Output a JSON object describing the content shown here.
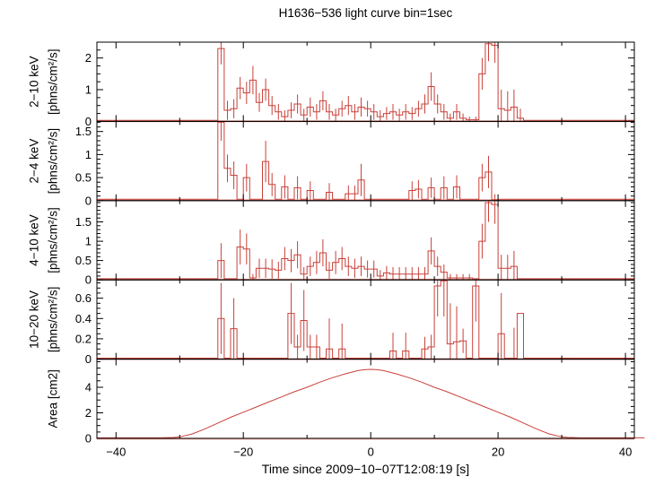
{
  "chart_data": {
    "type": "line",
    "title": "H1636−536 light curve bin=1sec",
    "x_axis": {
      "label": "Time since 2009−10−07T12:08:19 [s]",
      "range": [
        -43,
        41.4
      ],
      "major_ticks": [
        -40,
        -20,
        0,
        20,
        40
      ],
      "major_tick_labels": [
        "−40",
        "−20",
        "0",
        "20",
        "40"
      ],
      "minor_ticks": [
        -30,
        -10,
        10,
        30
      ]
    },
    "colors": {
      "line": "#c9413a",
      "error_bar": "#c9413a",
      "baseline_band": "#eba69f",
      "frame": "#000000",
      "background": "#ffffff",
      "text": "#000000"
    },
    "bin_width_sec": 1,
    "panels": [
      {
        "id": "2-10keV",
        "energy_label": "2−10 keV",
        "unit_label": "[phns/cm²/s]",
        "ylim": [
          0,
          2.5
        ],
        "yticks": [
          0,
          1,
          2
        ],
        "ytick_labels": [
          "0",
          "1",
          "2"
        ],
        "minor_step": 0.25,
        "baseline": 0.03,
        "bin_start": -25,
        "values": [
          0.03,
          2.3,
          0.35,
          0.4,
          1.05,
          0.9,
          1.3,
          0.6,
          1.0,
          0.5,
          0.3,
          0.15,
          0.35,
          0.55,
          0.2,
          0.45,
          0.3,
          0.65,
          0.3,
          0.2,
          0.4,
          0.5,
          0.3,
          0.45,
          0.4,
          0.3,
          0.15,
          0.25,
          0.3,
          0.2,
          0.3,
          0.25,
          0.4,
          0.55,
          1.1,
          0.55,
          0.3,
          0.1,
          0.3,
          0.1,
          0.05,
          0.05,
          1.5,
          2.45,
          2.4,
          0.4,
          0.35,
          0.45,
          0.1,
          0.03
        ],
        "errors": [
          0,
          0.5,
          0.3,
          0.3,
          0.35,
          0.35,
          0.45,
          0.3,
          0.35,
          0.3,
          0.25,
          0.2,
          0.25,
          0.3,
          0.2,
          0.3,
          0.25,
          0.3,
          0.25,
          0.2,
          0.25,
          0.3,
          0.25,
          0.3,
          0.25,
          0.25,
          0.2,
          0.2,
          0.25,
          0.2,
          0.25,
          0.2,
          0.25,
          0.3,
          0.45,
          0.3,
          0.25,
          0.15,
          0.25,
          0.15,
          0.1,
          0.1,
          0.5,
          0.55,
          0.55,
          0.6,
          0.6,
          0.55,
          0.3,
          0
        ]
      },
      {
        "id": "2-4keV",
        "energy_label": "2−4 keV",
        "unit_label": "[phns/cm²/s]",
        "ylim": [
          0,
          1.72
        ],
        "yticks": [
          0,
          0.5,
          1,
          1.5
        ],
        "ytick_labels": [
          "0",
          "0.5",
          "1",
          "1.5"
        ],
        "minor_step": 0.1,
        "baseline": 0.03,
        "bin_start": -25,
        "values": [
          0.03,
          1.7,
          0.7,
          0.55,
          0.03,
          0.5,
          0.03,
          0.03,
          0.85,
          0.35,
          0.03,
          0.3,
          0.03,
          0.28,
          0.03,
          0.22,
          0.03,
          0.03,
          0.18,
          0.03,
          0.03,
          0.15,
          0.15,
          0.45,
          0.03,
          0.03,
          0.03,
          0.03,
          0.03,
          0.03,
          0.03,
          0.22,
          0.25,
          0.03,
          0.28,
          0.03,
          0.28,
          0.03,
          0.3,
          0.03,
          0.03,
          0.03,
          0.5,
          0.62,
          0.02,
          0.03,
          0.03,
          0.03,
          0.03,
          0.03
        ],
        "errors": [
          0,
          0.4,
          0.3,
          0.3,
          0,
          0.3,
          0,
          0,
          0.45,
          0.25,
          0,
          0.25,
          0,
          0.25,
          0,
          0.2,
          0,
          0,
          0.2,
          0,
          0,
          0.18,
          0.18,
          0.35,
          0,
          0,
          0,
          0,
          0,
          0,
          0,
          0.2,
          0.2,
          0,
          0.22,
          0,
          0.25,
          0,
          0.25,
          0,
          0,
          0,
          0.3,
          0.35,
          0.12,
          0,
          0,
          0,
          0,
          0
        ]
      },
      {
        "id": "4-10keV",
        "energy_label": "4−10 keV",
        "unit_label": "[phns/cm²/s]",
        "ylim": [
          0,
          2.05
        ],
        "yticks": [
          0,
          0.5,
          1,
          1.5
        ],
        "ytick_labels": [
          "0",
          "0.5",
          "1",
          "1.5"
        ],
        "minor_step": 0.1,
        "baseline": 0.03,
        "bin_start": -25,
        "values": [
          0.03,
          0.5,
          0.03,
          0.03,
          0.85,
          0.8,
          0.05,
          0.3,
          0.3,
          0.28,
          0.25,
          0.55,
          0.5,
          0.65,
          0.15,
          0.35,
          0.45,
          0.7,
          0.25,
          0.45,
          0.55,
          0.35,
          0.3,
          0.35,
          0.28,
          0.28,
          0.1,
          0.18,
          0.15,
          0.15,
          0.15,
          0.15,
          0.15,
          0.15,
          0.75,
          0.35,
          0.2,
          0.05,
          0.05,
          0.05,
          0.05,
          0.03,
          1.0,
          2.0,
          1.95,
          0.3,
          0.3,
          0.35,
          0.03,
          0.03
        ],
        "errors": [
          0,
          0.45,
          0,
          0,
          0.45,
          0.4,
          0.1,
          0.25,
          0.25,
          0.25,
          0.22,
          0.3,
          0.3,
          0.35,
          0.18,
          0.25,
          0.3,
          0.35,
          0.22,
          0.3,
          0.3,
          0.25,
          0.25,
          0.25,
          0.22,
          0.22,
          0.15,
          0.18,
          0.18,
          0.18,
          0.18,
          0.18,
          0.18,
          0.18,
          0.35,
          0.25,
          0.2,
          0.1,
          0.1,
          0.1,
          0.1,
          0,
          0.45,
          0.5,
          0.5,
          0.35,
          0.35,
          0.4,
          0,
          0
        ]
      },
      {
        "id": "10-20keV",
        "energy_label": "10−20 keV",
        "unit_label": "[phns/cm²/s]",
        "ylim": [
          0,
          0.78
        ],
        "yticks": [
          0,
          0.2,
          0.4,
          0.6
        ],
        "ytick_labels": [
          "0",
          "0.2",
          "0.4",
          "0.6"
        ],
        "minor_step": 0.05,
        "baseline": 0.01,
        "bin_start": -25,
        "values": [
          0.01,
          0.4,
          0.01,
          0.3,
          0.01,
          0.01,
          0.01,
          0.01,
          0.01,
          0.01,
          0.01,
          0.01,
          0.45,
          0.12,
          0.38,
          0.12,
          0.12,
          0.01,
          0.1,
          0.01,
          0.1,
          0.01,
          0.01,
          0.01,
          0.01,
          0.01,
          0.01,
          0.01,
          0.08,
          0.01,
          0.08,
          0.01,
          0.01,
          0.1,
          0.12,
          0.72,
          0.77,
          0.15,
          0.17,
          0.18,
          0.01,
          0.72,
          0.01,
          0.01,
          0.01,
          0.25,
          0.01,
          0.01,
          0.45,
          0.01
        ],
        "errors": [
          0,
          0.35,
          0,
          0.3,
          0,
          0,
          0,
          0,
          0,
          0,
          0,
          0,
          0.3,
          0.12,
          0.3,
          0.12,
          0.12,
          0,
          0.3,
          0,
          0.25,
          0,
          0,
          0,
          0,
          0,
          0,
          0,
          0.18,
          0,
          0.18,
          0,
          0,
          0.12,
          0.12,
          0.3,
          0.35,
          0.4,
          0.35,
          0.12,
          0,
          0.35,
          0,
          0,
          0,
          0.4,
          0,
          0.3,
          0,
          0
        ]
      },
      {
        "id": "area",
        "energy_label": "",
        "unit_label": "Area [cm2]",
        "ylim": [
          0,
          6.2
        ],
        "yticks": [
          0,
          2,
          4
        ],
        "ytick_labels": [
          "0",
          "2",
          "4"
        ],
        "minor_step": 0.5,
        "baseline": 0.04,
        "curve_x": [
          -43,
          -33,
          -31,
          -30,
          -28,
          -26,
          -24,
          -22,
          -20,
          -18,
          -16,
          -14,
          -12,
          -10,
          -8,
          -6,
          -4,
          -2,
          -1,
          0,
          1,
          2,
          4,
          6,
          8,
          10,
          12,
          14,
          16,
          18,
          20,
          22,
          24,
          26,
          28,
          30,
          31,
          33,
          43
        ],
        "curve_y": [
          0.04,
          0.04,
          0.07,
          0.12,
          0.35,
          0.75,
          1.2,
          1.65,
          2.05,
          2.45,
          2.85,
          3.25,
          3.65,
          4.0,
          4.4,
          4.75,
          5.05,
          5.3,
          5.37,
          5.4,
          5.37,
          5.3,
          5.05,
          4.75,
          4.4,
          4.0,
          3.65,
          3.25,
          2.85,
          2.45,
          2.05,
          1.65,
          1.2,
          0.75,
          0.35,
          0.12,
          0.07,
          0.04,
          0.04
        ]
      }
    ]
  }
}
